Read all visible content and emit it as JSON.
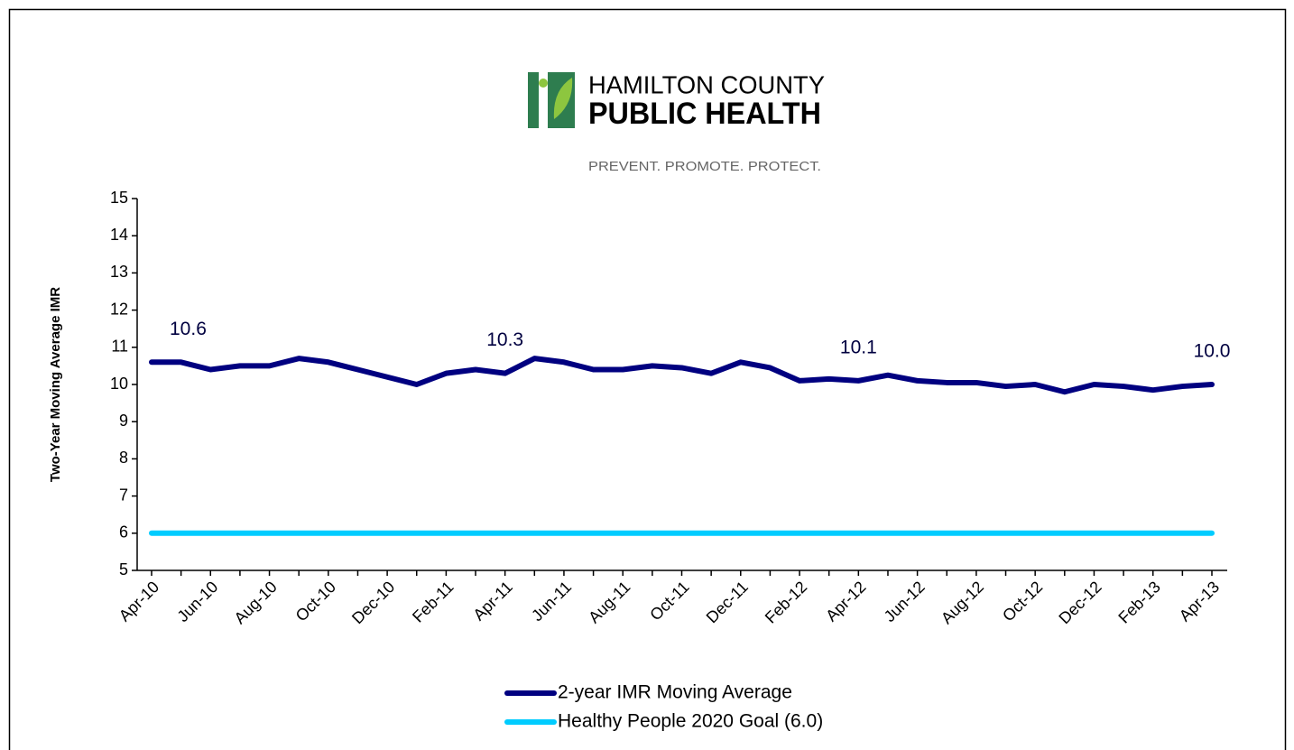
{
  "chart_data": {
    "type": "line",
    "logo": {
      "line1": "HAMILTON COUNTY",
      "line2": "PUBLIC HEALTH",
      "tagline": "PREVENT. PROMOTE. PROTECT."
    },
    "ylabel": "Two-Year Moving Average IMR",
    "categories": [
      "Apr-10",
      null,
      "Jun-10",
      null,
      "Aug-10",
      null,
      "Oct-10",
      null,
      "Dec-10",
      null,
      "Feb-11",
      null,
      "Apr-11",
      null,
      "Jun-11",
      null,
      "Aug-11",
      null,
      "Oct-11",
      null,
      "Dec-11",
      null,
      "Feb-12",
      null,
      "Apr-12",
      null,
      "Jun-12",
      null,
      "Aug-12",
      null,
      "Oct-12",
      null,
      "Dec-12",
      null,
      "Feb-13",
      null,
      "Apr-13"
    ],
    "series": [
      {
        "name": "2-year IMR Moving Average",
        "color": "#000080",
        "values": [
          10.6,
          10.6,
          10.4,
          10.5,
          10.5,
          10.7,
          10.6,
          10.4,
          10.2,
          10.0,
          10.3,
          10.4,
          10.3,
          10.7,
          10.6,
          10.4,
          10.4,
          10.5,
          10.45,
          10.3,
          10.6,
          10.45,
          10.1,
          10.15,
          10.1,
          10.25,
          10.1,
          10.05,
          10.05,
          9.95,
          10.0,
          9.8,
          10.0,
          9.95,
          9.85,
          9.95,
          10.0
        ],
        "value_labels": [
          "10.6",
          null,
          null,
          null,
          null,
          null,
          null,
          null,
          null,
          null,
          null,
          null,
          "10.3",
          null,
          null,
          null,
          null,
          null,
          null,
          null,
          null,
          null,
          null,
          null,
          "10.1",
          null,
          null,
          null,
          null,
          null,
          null,
          null,
          null,
          null,
          null,
          null,
          "10.0"
        ]
      },
      {
        "name": "Healthy People 2020 Goal (6.0)",
        "color": "#00ccff",
        "values": [
          6,
          6,
          6,
          6,
          6,
          6,
          6,
          6,
          6,
          6,
          6,
          6,
          6,
          6,
          6,
          6,
          6,
          6,
          6,
          6,
          6,
          6,
          6,
          6,
          6,
          6,
          6,
          6,
          6,
          6,
          6,
          6,
          6,
          6,
          6,
          6,
          6
        ]
      }
    ],
    "ylim": [
      5,
      15
    ],
    "yticks": [
      5,
      6,
      7,
      8,
      9,
      10,
      11,
      12,
      13,
      14,
      15
    ],
    "grid": false
  }
}
